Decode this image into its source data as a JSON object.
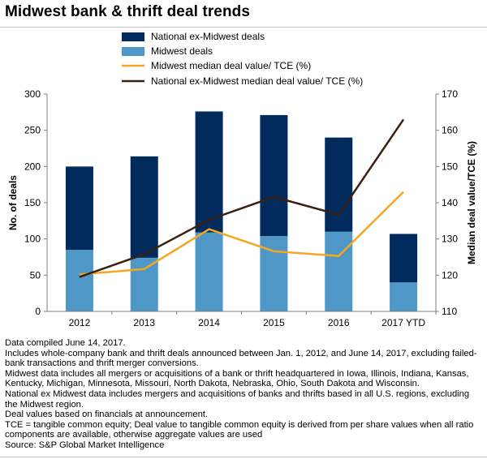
{
  "title": "Midwest bank & thrift deal trends",
  "chart_data": {
    "type": "bar",
    "categories": [
      "2012",
      "2013",
      "2014",
      "2015",
      "2016",
      "2017 YTD"
    ],
    "series": [
      {
        "name": "National ex-Midwest deals",
        "kind": "bar",
        "stacked": true,
        "color": "#002b5c",
        "values": [
          115,
          140,
          167,
          167,
          130,
          67
        ]
      },
      {
        "name": "Midwest deals",
        "kind": "bar",
        "stacked": true,
        "color": "#4f97c6",
        "values": [
          85,
          74,
          109,
          104,
          110,
          40
        ]
      },
      {
        "name": "Midwest median deal value/ TCE (%)",
        "kind": "line",
        "axis": "right",
        "color": "#f5a623",
        "values": [
          120.2,
          121.7,
          132.7,
          126.6,
          125.3,
          143.0
        ]
      },
      {
        "name": "National ex-Midwest median deal value/ TCE (%)",
        "kind": "line",
        "axis": "right",
        "color": "#3b1f0f",
        "values": [
          119.5,
          125.8,
          135.3,
          141.6,
          136.7,
          163.0
        ]
      }
    ],
    "ylabel": "No. of deals",
    "ylabel_right": "Median deal value/TCE (%)",
    "ylim": [
      0,
      300
    ],
    "yticks": [
      "0",
      "50",
      "100",
      "150",
      "200",
      "250",
      "300"
    ],
    "ylim_right": [
      110,
      170
    ],
    "yticks_right": [
      "110",
      "120",
      "130",
      "140",
      "150",
      "160",
      "170"
    ],
    "grid": false,
    "legend_position": "top"
  },
  "notes": [
    "Data compiled June 14, 2017.",
    "Includes whole-company bank and thrift deals announced between Jan. 1, 2012, and June 14, 2017, excluding failed-bank transactions and thrift merger conversions.",
    "Midwest data includes all mergers or acquisitions of a bank or thrift headquartered in Iowa, Illinois, Indiana, Kansas, Kentucky, Michigan, Minnesota, Missouri, North Dakota, Nebraska, Ohio, South Dakota and Wisconsin.",
    "National ex Midwest data includes mergers and acquisitions of banks and thrifts based in all U.S. regions, excluding the Midwest region.",
    "Deal values based on financials at announcement.",
    "TCE = tangible common equity; Deal value to tangible common equity is derived from per share values when all ratio components are available, otherwise aggregate values are used",
    "Source: S&P Global Market Intelligence"
  ]
}
